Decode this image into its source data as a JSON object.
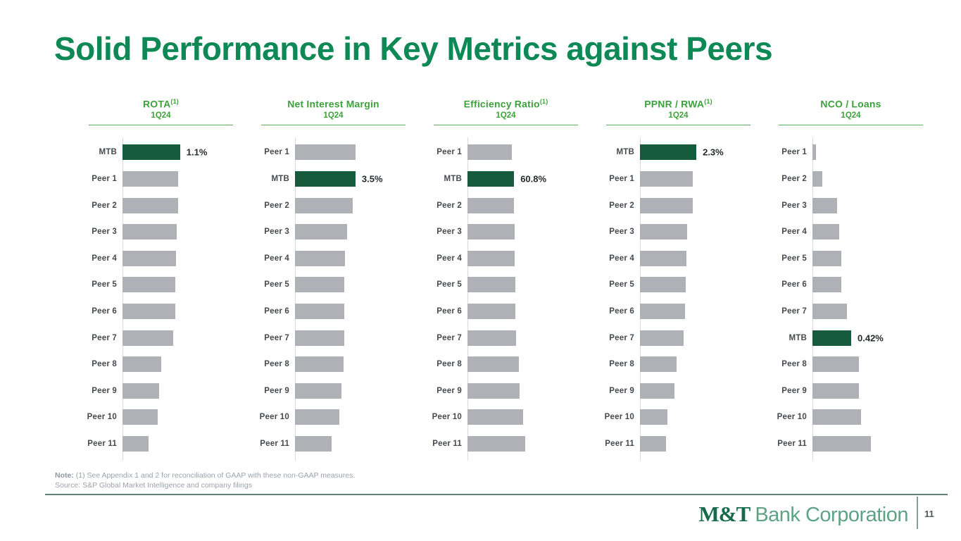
{
  "slide": {
    "title": "Solid Performance in Key Metrics against Peers",
    "note_bold": "Note:",
    "note_rest": " (1) See Appendix 1 and 2 for reconciliation of GAAP with these non-GAAP measures.",
    "source": "Source: S&P Global Market Intelligence and company filings",
    "logo_mt": "M&T",
    "logo_rest": "Bank Corporation",
    "page_number": "11"
  },
  "colors": {
    "title_green": "#0E8956",
    "chart_header_green": "#3EA13C",
    "mtb_bar_green": "#175B3D",
    "peer_bar_gray": "#AFB1B6",
    "label_gray": "#46494E",
    "note_gray": "#9BA2AC",
    "divider_teal": "#5F8477"
  },
  "chart_data": [
    {
      "type": "bar",
      "orientation": "horizontal",
      "title": "ROTA",
      "title_sup": "(1)",
      "subtitle": "1Q24",
      "xmax": 1.48,
      "legend": "none",
      "grid": false,
      "rows": [
        {
          "label": "MTB",
          "value": 1.1,
          "value_label": "1.1%",
          "highlight": true
        },
        {
          "label": "Peer 1",
          "value": 1.06
        },
        {
          "label": "Peer 2",
          "value": 1.06
        },
        {
          "label": "Peer 3",
          "value": 1.03
        },
        {
          "label": "Peer 4",
          "value": 1.02
        },
        {
          "label": "Peer 5",
          "value": 1.01
        },
        {
          "label": "Peer 6",
          "value": 1.01
        },
        {
          "label": "Peer 7",
          "value": 0.97
        },
        {
          "label": "Peer 8",
          "value": 0.74
        },
        {
          "label": "Peer 9",
          "value": 0.7
        },
        {
          "label": "Peer 10",
          "value": 0.67
        },
        {
          "label": "Peer 11",
          "value": 0.5
        }
      ]
    },
    {
      "type": "bar",
      "orientation": "horizontal",
      "title": "Net Interest Margin",
      "subtitle": "1Q24",
      "xmax": 4.48,
      "legend": "none",
      "grid": false,
      "rows": [
        {
          "label": "Peer 1",
          "value": 3.52
        },
        {
          "label": "MTB",
          "value": 3.5,
          "value_label": "3.5%",
          "highlight": true
        },
        {
          "label": "Peer 2",
          "value": 3.34
        },
        {
          "label": "Peer 3",
          "value": 3.01
        },
        {
          "label": "Peer 4",
          "value": 2.89
        },
        {
          "label": "Peer 5",
          "value": 2.85
        },
        {
          "label": "Peer 6",
          "value": 2.85
        },
        {
          "label": "Peer 7",
          "value": 2.85
        },
        {
          "label": "Peer 8",
          "value": 2.81
        },
        {
          "label": "Peer 9",
          "value": 2.69
        },
        {
          "label": "Peer 10",
          "value": 2.56
        },
        {
          "label": "Peer 11",
          "value": 2.12
        }
      ]
    },
    {
      "type": "bar",
      "orientation": "horizontal",
      "title": "Efficiency Ratio",
      "title_sup": "(1)",
      "subtitle": "1Q24",
      "xmax": 101,
      "legend": "none",
      "grid": false,
      "rows": [
        {
          "label": "Peer 1",
          "value": 58.0
        },
        {
          "label": "MTB",
          "value": 60.8,
          "value_label": "60.8%",
          "highlight": true
        },
        {
          "label": "Peer 2",
          "value": 60.9
        },
        {
          "label": "Peer 3",
          "value": 61.1
        },
        {
          "label": "Peer 4",
          "value": 61.3
        },
        {
          "label": "Peer 5",
          "value": 62.6
        },
        {
          "label": "Peer 6",
          "value": 62.7
        },
        {
          "label": "Peer 7",
          "value": 62.9
        },
        {
          "label": "Peer 8",
          "value": 67.3
        },
        {
          "label": "Peer 9",
          "value": 67.5
        },
        {
          "label": "Peer 10",
          "value": 72.8
        },
        {
          "label": "Peer 11",
          "value": 75.5
        }
      ]
    },
    {
      "type": "bar",
      "orientation": "horizontal",
      "title": "PPNR / RWA",
      "title_sup": "(1)",
      "subtitle": "1Q24",
      "xmax": 3.16,
      "legend": "none",
      "grid": false,
      "rows": [
        {
          "label": "MTB",
          "value": 2.3,
          "value_label": "2.3%",
          "highlight": true
        },
        {
          "label": "Peer 1",
          "value": 2.16
        },
        {
          "label": "Peer 2",
          "value": 2.15
        },
        {
          "label": "Peer 3",
          "value": 1.93
        },
        {
          "label": "Peer 4",
          "value": 1.9
        },
        {
          "label": "Peer 5",
          "value": 1.87
        },
        {
          "label": "Peer 6",
          "value": 1.84
        },
        {
          "label": "Peer 7",
          "value": 1.78
        },
        {
          "label": "Peer 8",
          "value": 1.5
        },
        {
          "label": "Peer 9",
          "value": 1.41
        },
        {
          "label": "Peer 10",
          "value": 1.12
        },
        {
          "label": "Peer 11",
          "value": 1.06
        }
      ]
    },
    {
      "type": "bar",
      "orientation": "horizontal",
      "title": "NCO / Loans",
      "subtitle": "1Q24",
      "xmax": 0.84,
      "legend": "none",
      "grid": false,
      "rows": [
        {
          "label": "Peer 1",
          "value": 0.04
        },
        {
          "label": "Peer 2",
          "value": 0.11
        },
        {
          "label": "Peer 3",
          "value": 0.27
        },
        {
          "label": "Peer 4",
          "value": 0.29
        },
        {
          "label": "Peer 5",
          "value": 0.31
        },
        {
          "label": "Peer 6",
          "value": 0.31
        },
        {
          "label": "Peer 7",
          "value": 0.37
        },
        {
          "label": "MTB",
          "value": 0.42,
          "value_label": "0.42%",
          "highlight": true
        },
        {
          "label": "Peer 8",
          "value": 0.5
        },
        {
          "label": "Peer 9",
          "value": 0.5
        },
        {
          "label": "Peer 10",
          "value": 0.53
        },
        {
          "label": "Peer 11",
          "value": 0.63
        }
      ]
    }
  ]
}
